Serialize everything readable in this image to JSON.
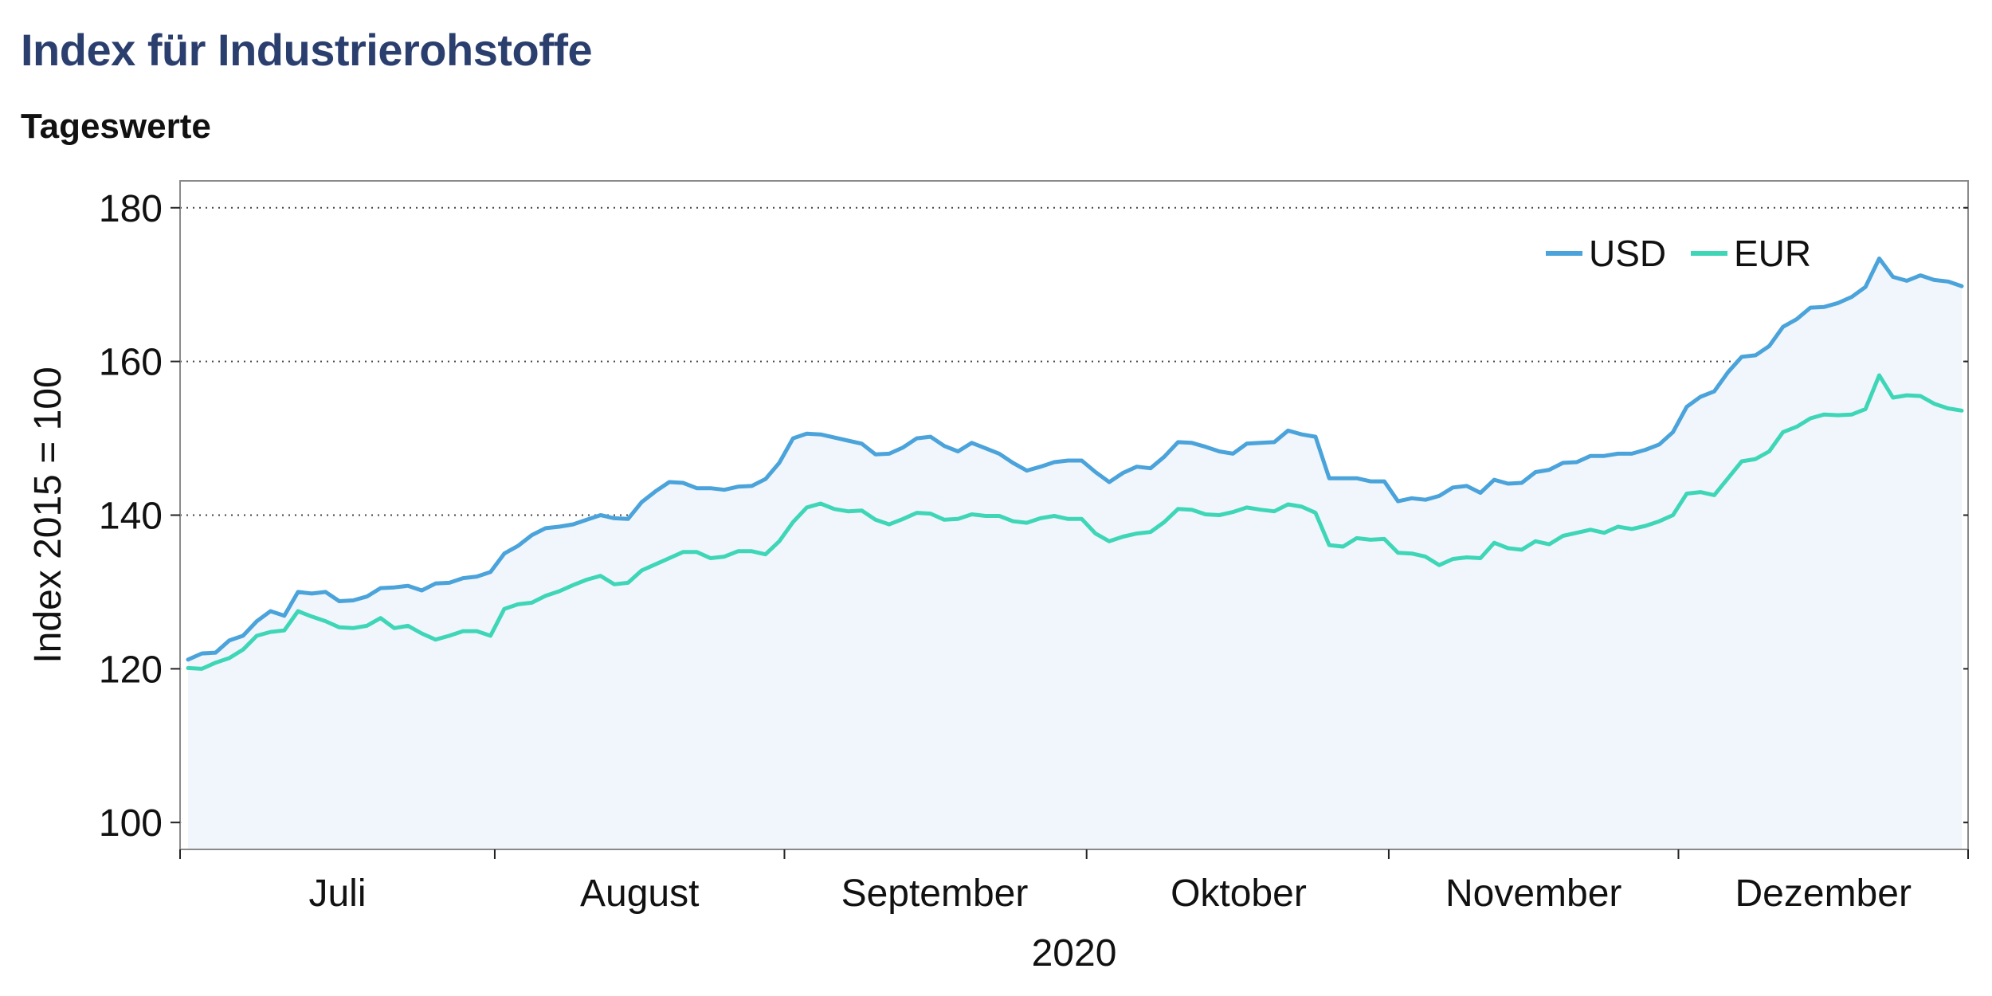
{
  "header": {
    "title": "Index für Industrierohstoffe",
    "subtitle": "Tageswerte"
  },
  "chart_data": {
    "type": "line",
    "ylabel": "Index 2015 = 100",
    "xlabel": "2020",
    "ylim": [
      96.5,
      183.5
    ],
    "yticks": [
      100,
      120,
      140,
      160,
      180
    ],
    "grid": "horizontal dotted",
    "legend": "top-right",
    "x_range": [
      0,
      1
    ],
    "month_boundaries": [
      0,
      0.176,
      0.338,
      0.507,
      0.676,
      0.838,
      1.0
    ],
    "month_labels": [
      {
        "label": "Juli",
        "pos": 0.088
      },
      {
        "label": "August",
        "pos": 0.257
      },
      {
        "label": "September",
        "pos": 0.422
      },
      {
        "label": "Oktober",
        "pos": 0.592
      },
      {
        "label": "November",
        "pos": 0.757
      },
      {
        "label": "Dezember",
        "pos": 0.919
      }
    ],
    "series": [
      {
        "name": "USD",
        "color": "#4aa3da",
        "fill": "#f0f6fb",
        "values": [
          121.2,
          122.0,
          122.1,
          123.7,
          124.3,
          126.2,
          127.5,
          126.9,
          130.0,
          129.8,
          130.0,
          128.8,
          128.9,
          129.4,
          130.5,
          130.6,
          130.8,
          130.2,
          131.1,
          131.2,
          131.8,
          132.0,
          132.6,
          135.0,
          136.0,
          137.4,
          138.3,
          138.5,
          138.8,
          139.4,
          140.0,
          139.6,
          139.5,
          141.7,
          143.1,
          144.3,
          144.2,
          143.5,
          143.5,
          143.3,
          143.7,
          143.8,
          144.7,
          146.8,
          150.0,
          150.6,
          150.5,
          150.1,
          149.7,
          149.3,
          147.9,
          148.0,
          148.8,
          150.0,
          150.2,
          149.0,
          148.3,
          149.4,
          148.7,
          148.0,
          146.8,
          145.8,
          146.3,
          146.9,
          147.1,
          147.1,
          145.6,
          144.3,
          145.5,
          146.3,
          146.1,
          147.6,
          149.5,
          149.4,
          148.9,
          148.3,
          148.0,
          149.3,
          149.4,
          149.5,
          151.0,
          150.5,
          150.2,
          144.8,
          144.8,
          144.8,
          144.4,
          144.4,
          141.8,
          142.2,
          142.0,
          142.5,
          143.6,
          143.8,
          142.9,
          144.6,
          144.1,
          144.2,
          145.6,
          145.9,
          146.8,
          146.9,
          147.7,
          147.7,
          148.0,
          148.0,
          148.5,
          149.2,
          150.8,
          154.1,
          155.4,
          156.1,
          158.6,
          160.6,
          160.8,
          162.0,
          164.5,
          165.5,
          167.0,
          167.1,
          167.6,
          168.4,
          169.7,
          173.4,
          171.0,
          170.5,
          171.2,
          170.6,
          170.4,
          169.8
        ]
      },
      {
        "name": "EUR",
        "color": "#3fd6b8",
        "values": [
          120.1,
          120.0,
          120.8,
          121.4,
          122.5,
          124.3,
          124.8,
          125.0,
          127.5,
          126.8,
          126.2,
          125.4,
          125.3,
          125.6,
          126.6,
          125.3,
          125.6,
          124.6,
          123.8,
          124.3,
          124.9,
          124.9,
          124.3,
          127.8,
          128.4,
          128.6,
          129.5,
          130.1,
          130.9,
          131.6,
          132.1,
          131.0,
          131.2,
          132.8,
          133.6,
          134.4,
          135.2,
          135.2,
          134.4,
          134.6,
          135.3,
          135.3,
          134.9,
          136.6,
          139.1,
          141.0,
          141.5,
          140.8,
          140.5,
          140.6,
          139.4,
          138.8,
          139.5,
          140.3,
          140.2,
          139.4,
          139.5,
          140.1,
          139.9,
          139.9,
          139.2,
          139.0,
          139.6,
          139.9,
          139.5,
          139.5,
          137.6,
          136.6,
          137.2,
          137.6,
          137.8,
          139.1,
          140.8,
          140.7,
          140.1,
          140.0,
          140.4,
          141.0,
          140.7,
          140.5,
          141.4,
          141.1,
          140.3,
          136.1,
          135.9,
          137.0,
          136.8,
          136.9,
          135.1,
          135.0,
          134.6,
          133.5,
          134.3,
          134.5,
          134.4,
          136.4,
          135.7,
          135.5,
          136.6,
          136.2,
          137.3,
          137.7,
          138.1,
          137.7,
          138.5,
          138.2,
          138.6,
          139.2,
          140.0,
          142.8,
          143.0,
          142.6,
          144.8,
          147.0,
          147.3,
          148.3,
          150.8,
          151.5,
          152.6,
          153.1,
          153.0,
          153.1,
          153.8,
          158.2,
          155.3,
          155.6,
          155.5,
          154.5,
          153.9,
          153.6
        ]
      }
    ]
  }
}
